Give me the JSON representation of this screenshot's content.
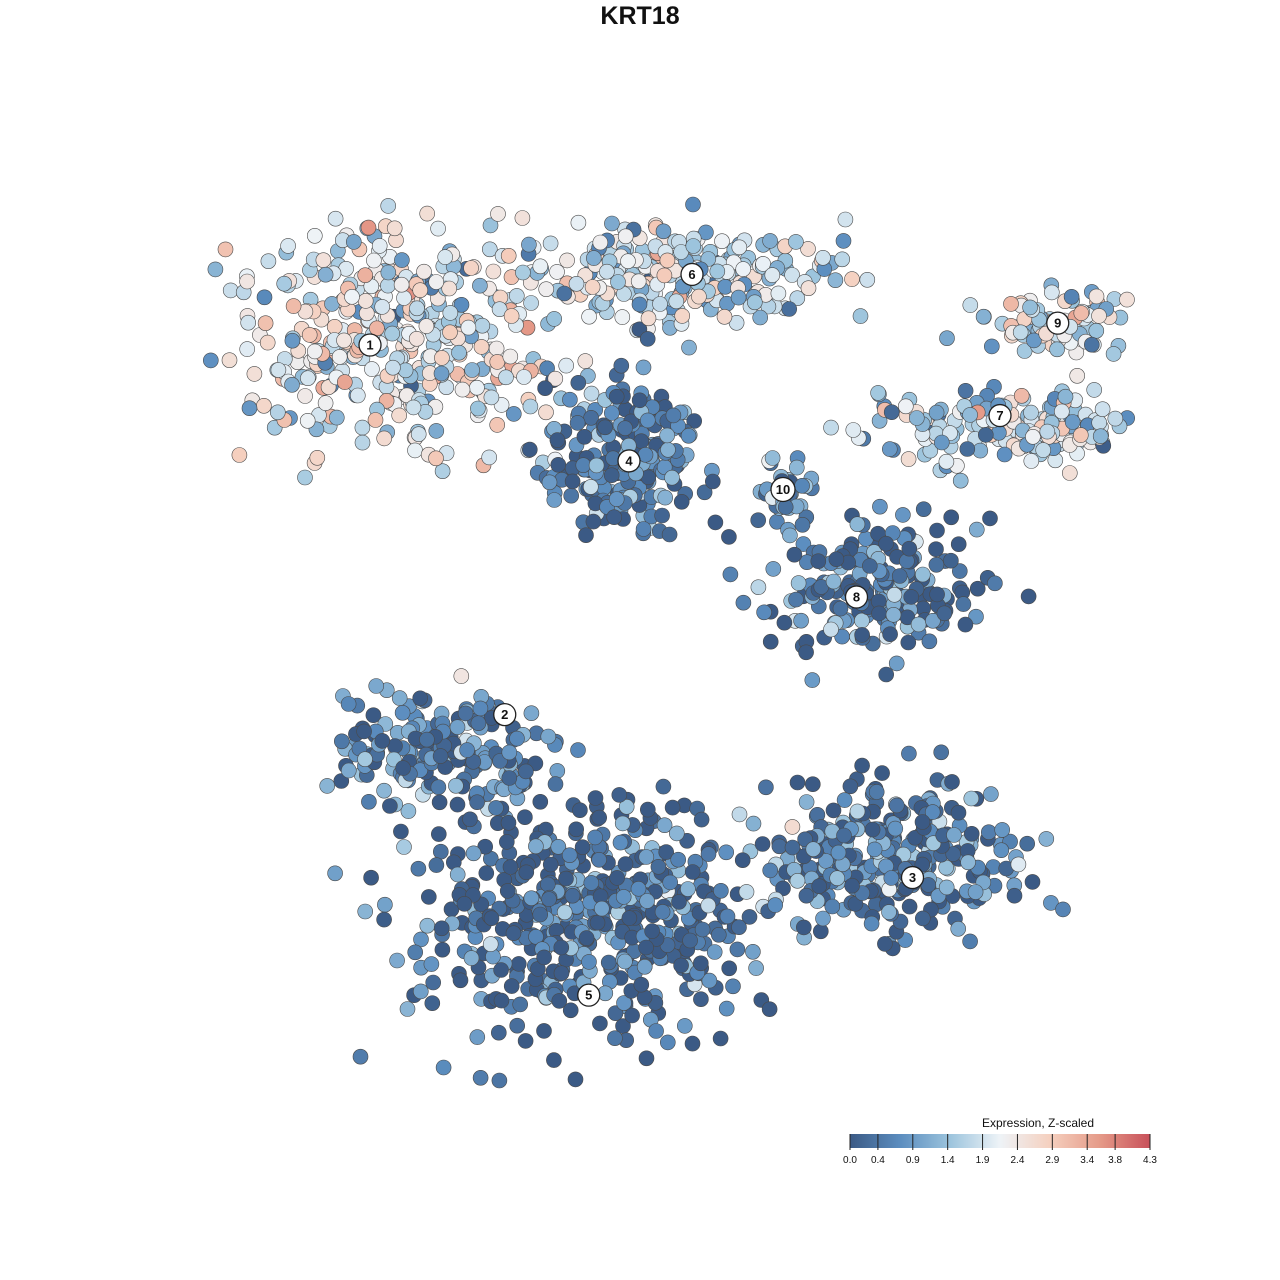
{
  "chart_data": {
    "type": "scatter",
    "title": "KRT18",
    "xlabel": "",
    "ylabel": "",
    "grid": false,
    "legend": {
      "title": "Expression, Z-scaled",
      "placement": "bottom-right",
      "ticks": [
        "0.0",
        "0.4",
        "0.9",
        "1.4",
        "1.9",
        "2.4",
        "2.9",
        "3.4",
        "3.8",
        "4.3"
      ],
      "tick_values": [
        0.0,
        0.4,
        0.9,
        1.4,
        1.9,
        2.4,
        2.9,
        3.4,
        3.8,
        4.3
      ],
      "range": [
        0.0,
        4.3
      ]
    },
    "color_scale": [
      "#3b5a85",
      "#5b8dbf",
      "#9cc4dd",
      "#eef3f7",
      "#f5d0bf",
      "#e59a88",
      "#c8505a"
    ],
    "clusters": [
      {
        "label": "1",
        "x": 0.0,
        "y": 1.72,
        "level": 2.2
      },
      {
        "label": "6",
        "x": 1.84,
        "y": 2.14,
        "level": 1.9
      },
      {
        "label": "9",
        "x": 3.93,
        "y": 1.85,
        "level": 2.0
      },
      {
        "label": "4",
        "x": 1.48,
        "y": 1.03,
        "level": 0.6
      },
      {
        "label": "10",
        "x": 2.36,
        "y": 0.86,
        "level": 1.2
      },
      {
        "label": "7",
        "x": 3.6,
        "y": 1.3,
        "level": 1.8
      },
      {
        "label": "8",
        "x": 2.78,
        "y": 0.22,
        "level": 0.5
      },
      {
        "label": "2",
        "x": 0.77,
        "y": -0.48,
        "level": 0.7
      },
      {
        "label": "3",
        "x": 3.1,
        "y": -1.45,
        "level": 0.6
      },
      {
        "label": "5",
        "x": 1.25,
        "y": -2.15,
        "level": 0.4
      }
    ]
  }
}
